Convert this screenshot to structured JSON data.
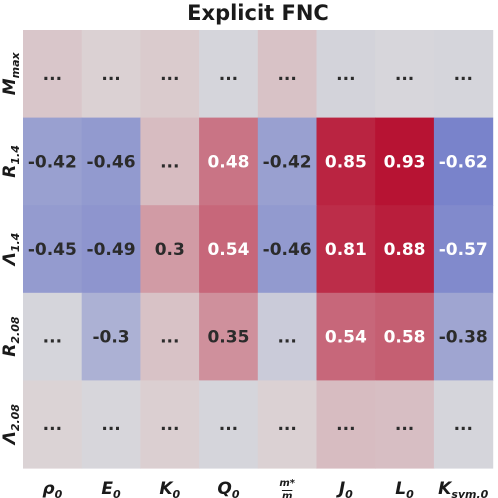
{
  "chart_data": {
    "type": "heatmap",
    "title": "Explicit FNC",
    "columns": [
      "ρ0",
      "E0",
      "K0",
      "Q0",
      "m*/m",
      "J0",
      "L0",
      "Ksym,0"
    ],
    "rows": [
      "Mmax",
      "R1.4",
      "Λ1.4",
      "R2.08",
      "Λ2.08"
    ],
    "cells": [
      [
        "...",
        "...",
        "...",
        "...",
        "...",
        "...",
        "...",
        "..."
      ],
      [
        "-0.42",
        "-0.46",
        "...",
        "0.48",
        "-0.42",
        "0.85",
        "0.93",
        "-0.62"
      ],
      [
        "-0.45",
        "-0.49",
        "0.3",
        "0.54",
        "-0.46",
        "0.81",
        "0.88",
        "-0.57"
      ],
      [
        "...",
        "-0.3",
        "...",
        "0.35",
        "...",
        "0.54",
        "0.58",
        "-0.38"
      ],
      [
        "...",
        "...",
        "...",
        "...",
        "...",
        "...",
        "...",
        "..."
      ]
    ],
    "values": [
      [
        0.1,
        0.05,
        0.08,
        -0.05,
        0.12,
        -0.06,
        -0.04,
        -0.05
      ],
      [
        -0.42,
        -0.46,
        0.15,
        0.48,
        -0.42,
        0.85,
        0.93,
        -0.62
      ],
      [
        -0.45,
        -0.49,
        0.3,
        0.54,
        -0.46,
        0.81,
        0.88,
        -0.57
      ],
      [
        -0.05,
        -0.3,
        0.12,
        0.35,
        -0.12,
        0.54,
        0.58,
        -0.38
      ],
      [
        0.04,
        -0.04,
        0.06,
        -0.05,
        0.05,
        0.15,
        0.14,
        -0.05
      ]
    ],
    "color_range": [
      -1,
      1
    ],
    "colormap": "coolwarm",
    "colors": {
      "neg": "#3b4cc0",
      "mid": "#dddcdc",
      "pos": "#b40426",
      "text_dark": "#2b2b2b",
      "text_light": "#ffffff"
    }
  }
}
